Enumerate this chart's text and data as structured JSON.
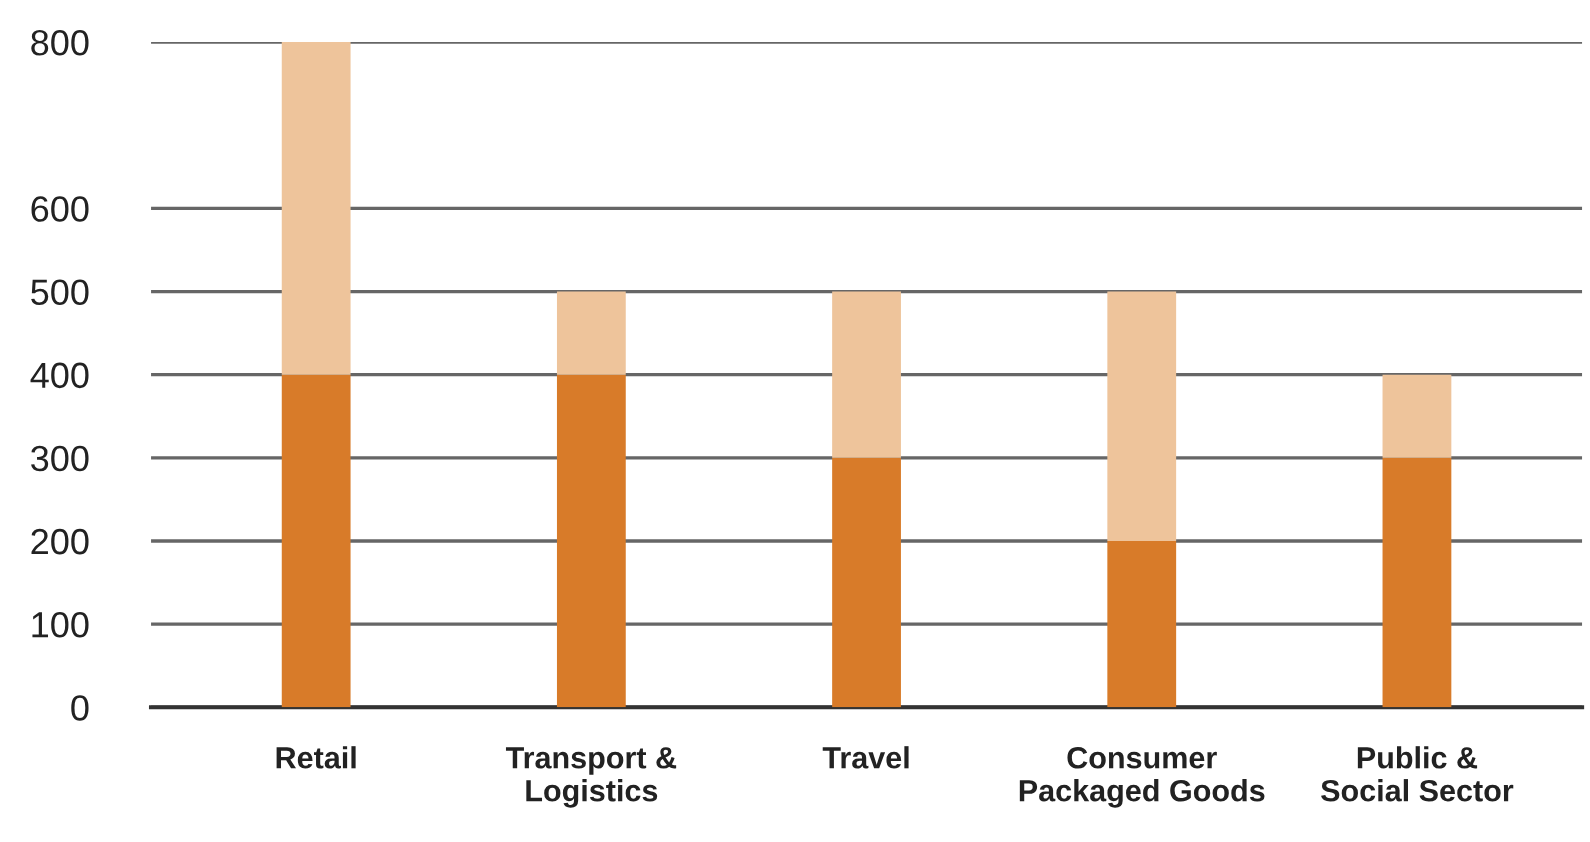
{
  "chart_data": {
    "type": "bar",
    "stacked": true,
    "categories": [
      "Retail",
      "Transport &\nLogistics",
      "Travel",
      "Consumer\nPackaged Goods",
      "Public &\nSocial Sector"
    ],
    "series": [
      {
        "color": "#d87b29",
        "values": [
          400,
          400,
          300,
          200,
          300
        ]
      },
      {
        "color": "#eec49b",
        "values": [
          400,
          100,
          200,
          300,
          100
        ]
      }
    ],
    "ylim": [
      0,
      800
    ],
    "yticks": [
      0,
      100,
      200,
      300,
      400,
      500,
      600,
      800
    ],
    "grid": "y"
  }
}
